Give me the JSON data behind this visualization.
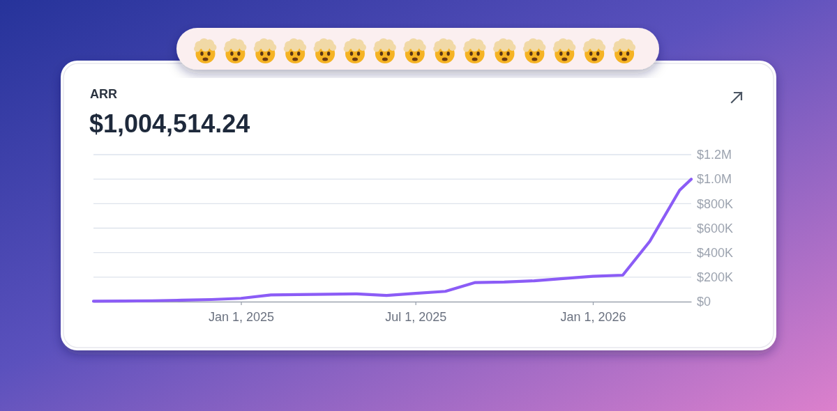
{
  "chart_data": {
    "type": "line",
    "title": "ARR",
    "subtitle": "$1,004,514.24",
    "x": [
      "2024-08-01",
      "2024-09-01",
      "2024-10-01",
      "2024-11-01",
      "2024-12-01",
      "2025-01-01",
      "2025-02-01",
      "2025-03-01",
      "2025-04-01",
      "2025-05-01",
      "2025-06-01",
      "2025-07-01",
      "2025-08-01",
      "2025-09-01",
      "2025-10-01",
      "2025-11-01",
      "2025-12-01",
      "2026-01-01",
      "2026-02-01",
      "2026-03-01",
      "2026-04-01",
      "2026-04-13"
    ],
    "series": [
      {
        "color": "#8b5cf6",
        "values": [
          3000,
          5000,
          7000,
          12000,
          17000,
          27000,
          55000,
          58000,
          60000,
          63000,
          50000,
          67000,
          84000,
          156000,
          160000,
          170000,
          188000,
          207000,
          216000,
          492000,
          910000,
          1000000
        ]
      }
    ],
    "xlim": [
      "2024-08-01",
      "2026-04-13"
    ],
    "xticks": [
      {
        "value": "2025-01-01",
        "label": "Jan 1, 2025"
      },
      {
        "value": "2025-07-01",
        "label": "Jul 1, 2025"
      },
      {
        "value": "2026-01-01",
        "label": "Jan 1, 2026"
      }
    ],
    "ylim": [
      0,
      1200000
    ],
    "yticks": [
      {
        "value": 0,
        "label": "$0"
      },
      {
        "value": 200000,
        "label": "$200K"
      },
      {
        "value": 400000,
        "label": "$400K"
      },
      {
        "value": 600000,
        "label": "$600K"
      },
      {
        "value": 800000,
        "label": "$800K"
      },
      {
        "value": 1000000,
        "label": "$1.0M"
      },
      {
        "value": 1200000,
        "label": "$1.2M"
      }
    ],
    "grid": "y"
  }
}
